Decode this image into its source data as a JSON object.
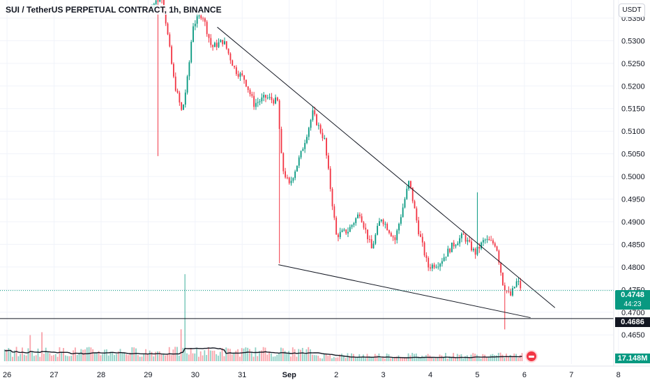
{
  "chart_data": {
    "type": "candlestick",
    "title": "SUI / TetherUS PERPETUAL CONTRACT, 1h, BINANCE",
    "currency": "USDT",
    "y_axis": {
      "ticks": [
        "0.5350",
        "0.5300",
        "0.5250",
        "0.5200",
        "0.5150",
        "0.5100",
        "0.5050",
        "0.5000",
        "0.4950",
        "0.4900",
        "0.4850",
        "0.4800",
        "0.4750",
        "0.4700",
        "0.4650"
      ],
      "range": [
        0.4638,
        0.539
      ]
    },
    "x_axis": {
      "ticks": [
        "26",
        "27",
        "28",
        "29",
        "30",
        "31",
        "Sep",
        "2",
        "3",
        "4",
        "5",
        "6",
        "7",
        "8"
      ],
      "range_days": [
        -0.15,
        12.9
      ]
    },
    "last_price": "0.4748",
    "countdown": "44:23",
    "support_level": "0.4686",
    "volume_label": "17.148M",
    "trendlines": [
      {
        "from": {
          "day": 4.47,
          "price": 0.533
        },
        "to": {
          "day": 11.65,
          "price": 0.471
        }
      },
      {
        "from": {
          "day": 5.77,
          "price": 0.4805
        },
        "to": {
          "day": 11.13,
          "price": 0.4688
        }
      }
    ],
    "price_waypoints": [
      [
        3.0,
        0.537
      ],
      [
        3.3,
        0.54
      ],
      [
        3.55,
        0.521
      ],
      [
        3.72,
        0.514
      ],
      [
        3.85,
        0.5225
      ],
      [
        3.95,
        0.5335
      ],
      [
        4.15,
        0.536
      ],
      [
        4.35,
        0.5285
      ],
      [
        4.6,
        0.53
      ],
      [
        4.85,
        0.5235
      ],
      [
        5.05,
        0.5215
      ],
      [
        5.25,
        0.516
      ],
      [
        5.5,
        0.5175
      ],
      [
        5.75,
        0.5165
      ],
      [
        5.85,
        0.502
      ],
      [
        6.0,
        0.498
      ],
      [
        6.25,
        0.505
      ],
      [
        6.5,
        0.514
      ],
      [
        6.75,
        0.508
      ],
      [
        7.0,
        0.487
      ],
      [
        7.25,
        0.488
      ],
      [
        7.5,
        0.492
      ],
      [
        7.75,
        0.484
      ],
      [
        7.95,
        0.491
      ],
      [
        8.25,
        0.486
      ],
      [
        8.55,
        0.499
      ],
      [
        8.75,
        0.488
      ],
      [
        8.95,
        0.48
      ],
      [
        9.2,
        0.481
      ],
      [
        9.45,
        0.4845
      ],
      [
        9.7,
        0.487
      ],
      [
        9.95,
        0.483
      ],
      [
        10.15,
        0.486
      ],
      [
        10.4,
        0.485
      ],
      [
        10.55,
        0.476
      ],
      [
        10.7,
        0.4735
      ],
      [
        10.85,
        0.477
      ],
      [
        10.95,
        0.4748
      ]
    ],
    "wicks": [
      {
        "day": 3.2,
        "low": 0.5045
      },
      {
        "day": 5.8,
        "low": 0.4808
      },
      {
        "day": 10.0,
        "high": 0.4965
      },
      {
        "day": 10.58,
        "low": 0.4662
      }
    ],
    "volume_spikes": [
      {
        "day": 3.78,
        "rel": 3.0
      },
      {
        "day": 3.68,
        "rel": 1.1
      },
      {
        "day": 0.5,
        "rel": 0.9
      },
      {
        "day": 0.75,
        "rel": 1.0
      }
    ]
  }
}
